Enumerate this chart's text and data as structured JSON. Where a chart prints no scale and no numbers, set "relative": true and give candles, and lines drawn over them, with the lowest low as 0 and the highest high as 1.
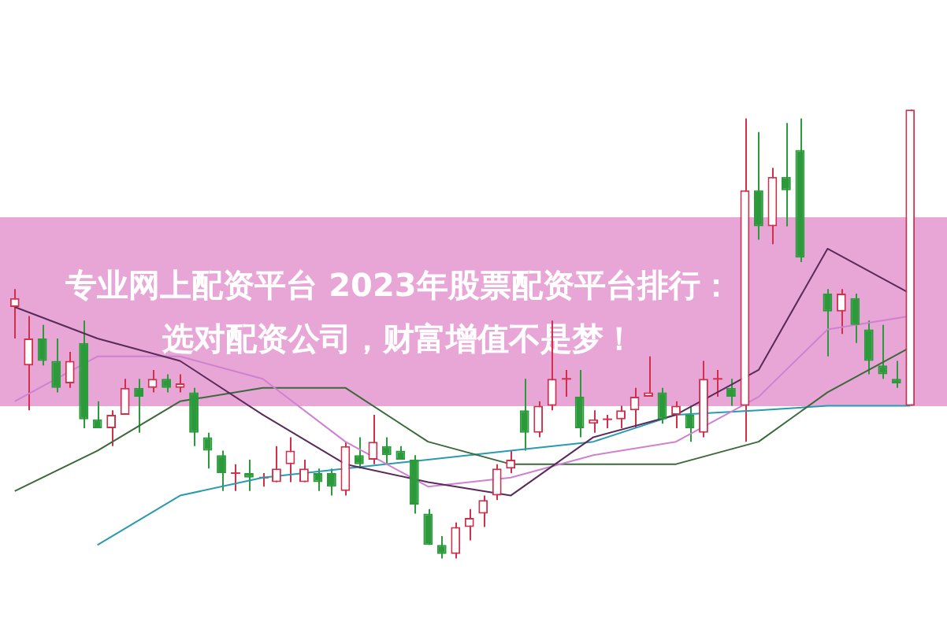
{
  "chart_data": {
    "type": "candlestick",
    "title": "专业网上配资平台 2023年股票配资平台排行：选对配资公司，财富增值不是梦！",
    "relative": true,
    "categories": [
      null,
      null,
      null,
      null,
      null,
      null,
      null,
      null,
      null,
      null,
      null,
      null,
      null,
      null,
      null,
      null,
      null,
      null,
      null,
      null,
      null,
      null,
      null,
      null,
      null,
      null,
      null,
      null,
      null,
      null,
      null,
      null,
      null,
      null,
      null,
      null,
      null,
      null,
      null,
      null,
      null,
      null,
      null,
      null,
      null,
      null,
      null,
      null,
      null,
      null,
      null,
      null,
      null,
      null,
      null,
      null,
      null,
      null,
      null,
      null,
      null,
      null,
      null,
      null,
      null,
      null
    ],
    "ohlc": [
      [
        0.56,
        0.6,
        0.49,
        0.58
      ],
      [
        0.43,
        0.54,
        0.33,
        0.49
      ],
      [
        0.49,
        0.52,
        0.43,
        0.44
      ],
      [
        0.44,
        0.49,
        0.37,
        0.38
      ],
      [
        0.39,
        0.46,
        0.38,
        0.44
      ],
      [
        0.48,
        0.53,
        0.29,
        0.31
      ],
      [
        0.31,
        0.35,
        0.29,
        0.29
      ],
      [
        0.29,
        0.33,
        0.25,
        0.32
      ],
      [
        0.32,
        0.4,
        0.32,
        0.38
      ],
      [
        0.38,
        0.4,
        0.28,
        0.36
      ],
      [
        0.38,
        0.42,
        0.37,
        0.4
      ],
      [
        0.4,
        0.41,
        0.37,
        0.38
      ],
      [
        0.38,
        0.41,
        0.37,
        0.39
      ],
      [
        0.37,
        0.38,
        0.25,
        0.28
      ],
      [
        0.27,
        0.28,
        0.2,
        0.24
      ],
      [
        0.23,
        0.24,
        0.15,
        0.19
      ],
      [
        0.19,
        0.21,
        0.15,
        0.19
      ],
      [
        0.19,
        0.22,
        0.15,
        0.18
      ],
      [
        0.18,
        0.19,
        0.16,
        0.18
      ],
      [
        0.17,
        0.25,
        0.17,
        0.2
      ],
      [
        0.21,
        0.27,
        0.17,
        0.24
      ],
      [
        0.17,
        0.22,
        0.17,
        0.2
      ],
      [
        0.19,
        0.2,
        0.15,
        0.17
      ],
      [
        0.19,
        0.2,
        0.14,
        0.16
      ],
      [
        0.15,
        0.26,
        0.14,
        0.25
      ],
      [
        0.23,
        0.27,
        0.2,
        0.21
      ],
      [
        0.22,
        0.32,
        0.21,
        0.26
      ],
      [
        0.25,
        0.27,
        0.21,
        0.23
      ],
      [
        0.24,
        0.25,
        0.22,
        0.22
      ],
      [
        0.22,
        0.23,
        0.1,
        0.12
      ],
      [
        0.1,
        0.11,
        0.03,
        0.03
      ],
      [
        0.03,
        0.05,
        0,
        0.01
      ],
      [
        0.01,
        0.08,
        0,
        0.07
      ],
      [
        0.07,
        0.11,
        0.04,
        0.09
      ],
      [
        0.1,
        0.14,
        0.07,
        0.13
      ],
      [
        0.14,
        0.21,
        0.13,
        0.2
      ],
      [
        0.2,
        0.24,
        0.19,
        0.22
      ],
      [
        0.33,
        0.4,
        0.24,
        0.28
      ],
      [
        0.28,
        0.35,
        0.27,
        0.34
      ],
      [
        0.34,
        0.53,
        0.33,
        0.4
      ],
      [
        0.4,
        0.42,
        0.36,
        0.4
      ],
      [
        0.36,
        0.42,
        0.27,
        0.29
      ],
      [
        0.3,
        0.33,
        0.28,
        0.31
      ],
      [
        0.31,
        0.32,
        0.29,
        0.31
      ],
      [
        0.31,
        0.34,
        0.29,
        0.33
      ],
      [
        0.33,
        0.38,
        0.29,
        0.36
      ],
      [
        0.36,
        0.45,
        0.36,
        0.37
      ],
      [
        0.37,
        0.38,
        0.3,
        0.31
      ],
      [
        0.32,
        0.35,
        0.29,
        0.34
      ],
      [
        0.32,
        0.34,
        0.26,
        0.29
      ],
      [
        0.28,
        0.44,
        0.27,
        0.4
      ],
      [
        0.4,
        0.42,
        0.36,
        0.4
      ],
      [
        0.38,
        0.4,
        0.34,
        0.36
      ],
      [
        0.34,
        0.98,
        0.26,
        0.82
      ],
      [
        0.82,
        0.95,
        0.71,
        0.74
      ],
      [
        0.74,
        0.87,
        0.7,
        0.85
      ],
      [
        0.85,
        0.97,
        0.74,
        0.82
      ],
      [
        0.91,
        0.98,
        0.66,
        0.67
      ],
      null,
      [
        0.59,
        0.6,
        0.45,
        0.55
      ],
      [
        0.55,
        0.6,
        0.5,
        0.59
      ],
      [
        0.58,
        0.59,
        0.48,
        0.52
      ],
      [
        0.51,
        0.53,
        0.41,
        0.44
      ],
      [
        0.43,
        0.52,
        0.4,
        0.41
      ],
      [
        0.4,
        0.44,
        0.38,
        0.39
      ],
      [
        0.34,
        1,
        0.34,
        1
      ]
    ],
    "colors": [
      "#d0304a",
      "#d0304a",
      "#2a9a3a",
      "#2a9a3a",
      "#d0304a",
      "#2a9a3a",
      "#2a9a3a",
      "#d0304a",
      "#d0304a",
      "#2a9a3a",
      "#d0304a",
      "#2a9a3a",
      "#d0304a",
      "#2a9a3a",
      "#2a9a3a",
      "#2a9a3a",
      "#d0304a",
      "#2a9a3a",
      "#d0304a",
      "#d0304a",
      "#d0304a",
      "#d0304a",
      "#2a9a3a",
      "#2a9a3a",
      "#d0304a",
      "#2a9a3a",
      "#d0304a",
      "#2a9a3a",
      "#2a9a3a",
      "#2a9a3a",
      "#2a9a3a",
      "#2a9a3a",
      "#d0304a",
      "#d0304a",
      "#d0304a",
      "#d0304a",
      "#d0304a",
      "#2a9a3a",
      "#d0304a",
      "#d0304a",
      "#d0304a",
      "#2a9a3a",
      "#d0304a",
      "#d0304a",
      "#d0304a",
      "#d0304a",
      "#d0304a",
      "#2a9a3a",
      "#d0304a",
      "#2a9a3a",
      "#d0304a",
      "#d0304a",
      "#2a9a3a",
      "#d0304a",
      "#2a9a3a",
      "#d0304a",
      "#2a9a3a",
      "#2a9a3a",
      null,
      "#2a9a3a",
      "#d0304a",
      "#2a9a3a",
      "#2a9a3a",
      "#2a9a3a",
      "#2a9a3a",
      "#d0304a"
    ],
    "series": [
      {
        "type": "line",
        "color": "#5a2a5a",
        "values": [
          0.56,
          null,
          null,
          null,
          null,
          null,
          0.49,
          null,
          null,
          null,
          null,
          null,
          0.44,
          null,
          null,
          null,
          null,
          null,
          0.32,
          null,
          null,
          null,
          null,
          null,
          0.21,
          null,
          null,
          null,
          null,
          null,
          0.17,
          null,
          null,
          null,
          null,
          null,
          0.14,
          null,
          null,
          null,
          null,
          null,
          0.27,
          null,
          null,
          null,
          null,
          null,
          0.32,
          null,
          null,
          null,
          null,
          null,
          0.42,
          null,
          null,
          null,
          null,
          0.69,
          null,
          null,
          null,
          null,
          null,
          0.59
        ]
      },
      {
        "type": "line",
        "color": "#d080d0",
        "values": [
          0.35,
          null,
          null,
          null,
          null,
          null,
          0.45,
          null,
          null,
          null,
          null,
          null,
          0.45,
          null,
          null,
          null,
          null,
          null,
          0.4,
          null,
          null,
          null,
          null,
          null,
          0.26,
          null,
          null,
          null,
          null,
          null,
          0.16,
          null,
          null,
          null,
          null,
          null,
          0.18,
          null,
          null,
          null,
          null,
          null,
          0.23,
          null,
          null,
          null,
          null,
          null,
          0.26,
          null,
          null,
          null,
          null,
          null,
          0.36,
          null,
          null,
          null,
          null,
          0.51,
          null,
          null,
          null,
          null,
          null,
          0.54
        ]
      },
      {
        "type": "line",
        "color": "#3a6a3a",
        "values": [
          0.15,
          null,
          null,
          null,
          null,
          null,
          0.24,
          null,
          null,
          null,
          null,
          null,
          0.35,
          null,
          null,
          null,
          null,
          null,
          0.38,
          null,
          null,
          null,
          null,
          null,
          0.38,
          null,
          null,
          null,
          null,
          null,
          0.26,
          null,
          null,
          null,
          null,
          null,
          0.21,
          null,
          null,
          null,
          null,
          null,
          0.21,
          null,
          null,
          null,
          null,
          null,
          0.21,
          null,
          null,
          null,
          null,
          null,
          0.26,
          null,
          null,
          null,
          null,
          0.37,
          null,
          null,
          null,
          null,
          null,
          0.47
        ]
      },
      {
        "type": "line",
        "color": "#2a9ab0",
        "values": [
          null,
          null,
          null,
          null,
          null,
          null,
          0.03,
          null,
          null,
          null,
          null,
          null,
          0.14,
          null,
          null,
          null,
          null,
          null,
          0.18,
          null,
          null,
          null,
          null,
          null,
          0.2,
          null,
          null,
          null,
          null,
          null,
          0.22,
          null,
          null,
          null,
          null,
          null,
          0.24,
          null,
          null,
          null,
          null,
          null,
          0.26,
          null,
          null,
          null,
          null,
          null,
          0.32,
          null,
          null,
          null,
          null,
          null,
          0.33,
          null,
          null,
          null,
          null,
          0.34,
          null,
          null,
          null,
          null,
          null,
          0.34
        ]
      }
    ]
  }
}
